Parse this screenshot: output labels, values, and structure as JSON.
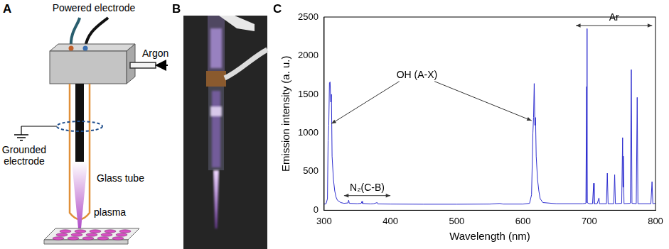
{
  "panel_letters": [
    "A",
    "B",
    "C"
  ],
  "diagram": {
    "powered_electrode": "Powered electrode",
    "argon": "Argon",
    "glass_tube": "Glass tube",
    "grounded_electrode": "Grounded electrode",
    "plasma": "plasma"
  },
  "chart_data": {
    "type": "line",
    "x": [
      300,
      303,
      305,
      306,
      307,
      308,
      309,
      310,
      311,
      312,
      314,
      316,
      318,
      320,
      325,
      330,
      336,
      337,
      338,
      350,
      356,
      357,
      358,
      370,
      375,
      380,
      381,
      400,
      450,
      500,
      550,
      565,
      570,
      600,
      610,
      613,
      614,
      615,
      616,
      617,
      618,
      619,
      620,
      622,
      624,
      626,
      630,
      650,
      690,
      695,
      696,
      696.5,
      697,
      700,
      705,
      706.7,
      707.5,
      712,
      714.7,
      715.5,
      726,
      727.3,
      728.5,
      737,
      738.4,
      739.5,
      749,
      750.4,
      751,
      751.5,
      752.5,
      762,
      763.5,
      764.5,
      771,
      772.4,
      773.5,
      793,
      794.8,
      796,
      800
    ],
    "values": [
      80,
      85,
      150,
      900,
      1100,
      1650,
      1660,
      1400,
      1500,
      700,
      400,
      250,
      170,
      130,
      100,
      90,
      95,
      130,
      90,
      85,
      90,
      115,
      88,
      82,
      85,
      100,
      82,
      80,
      78,
      78,
      80,
      88,
      80,
      80,
      90,
      200,
      600,
      1000,
      1200,
      1640,
      1100,
      1200,
      700,
      400,
      250,
      150,
      100,
      85,
      85,
      90,
      1600,
      2350,
      100,
      85,
      85,
      350,
      85,
      85,
      160,
      85,
      85,
      480,
      85,
      85,
      460,
      85,
      90,
      940,
      300,
      700,
      85,
      90,
      1820,
      90,
      85,
      1460,
      85,
      85,
      370,
      85,
      90
    ],
    "color": "#2f2fcf",
    "xlim": [
      300,
      800
    ],
    "xticks": [
      300,
      400,
      500,
      600,
      700,
      800
    ],
    "ylim": [
      0,
      2500
    ],
    "yticks": [
      0,
      500,
      1000,
      1500,
      2000,
      2500
    ],
    "x_label": "Wavelength (nm)",
    "y_label": "Emission intensity (a. u.)",
    "grid": false,
    "annotations": [
      {
        "text": "OH (A-X)",
        "x": 440,
        "y": 1750,
        "points_to": [
          [
            311,
            1120
          ],
          [
            613,
            1160
          ]
        ]
      },
      {
        "text": "N₂(C-B)",
        "span": [
          330,
          400
        ],
        "y": 190
      },
      {
        "text": "Ar",
        "span": [
          680,
          795
        ],
        "y": 2390
      }
    ]
  }
}
